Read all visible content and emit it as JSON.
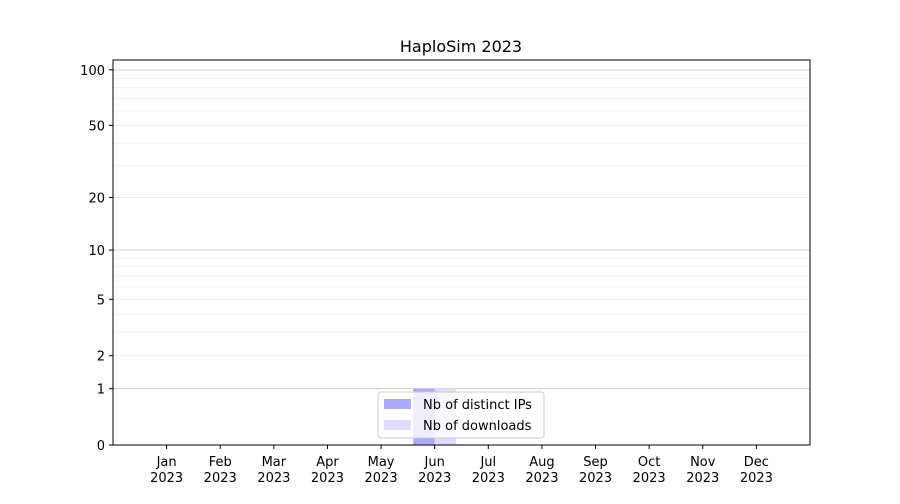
{
  "chart_data": {
    "type": "bar",
    "title": "HaploSim 2023",
    "xlabel": "",
    "ylabel": "",
    "y_scale": "log(1+y)",
    "ylim": [
      0,
      113
    ],
    "y_ticks": [
      0,
      1,
      2,
      5,
      10,
      20,
      50,
      100
    ],
    "y_tick_labels": [
      "0",
      "1",
      "2",
      "5",
      "10",
      "20",
      "50",
      "100"
    ],
    "grid": true,
    "categories": [
      [
        "Jan",
        "2023"
      ],
      [
        "Feb",
        "2023"
      ],
      [
        "Mar",
        "2023"
      ],
      [
        "Apr",
        "2023"
      ],
      [
        "May",
        "2023"
      ],
      [
        "Jun",
        "2023"
      ],
      [
        "Jul",
        "2023"
      ],
      [
        "Aug",
        "2023"
      ],
      [
        "Sep",
        "2023"
      ],
      [
        "Oct",
        "2023"
      ],
      [
        "Nov",
        "2023"
      ],
      [
        "Dec",
        "2023"
      ]
    ],
    "series": [
      {
        "name": "Nb of distinct IPs",
        "color": "#aaaaff",
        "values": [
          0,
          0,
          0,
          0,
          0,
          1,
          0,
          0,
          0,
          0,
          0,
          0
        ]
      },
      {
        "name": "Nb of downloads",
        "color": "#ddddff",
        "values": [
          0,
          0,
          0,
          0,
          0,
          1,
          0,
          0,
          0,
          0,
          0,
          0
        ]
      }
    ],
    "legend_position": "lower center"
  }
}
